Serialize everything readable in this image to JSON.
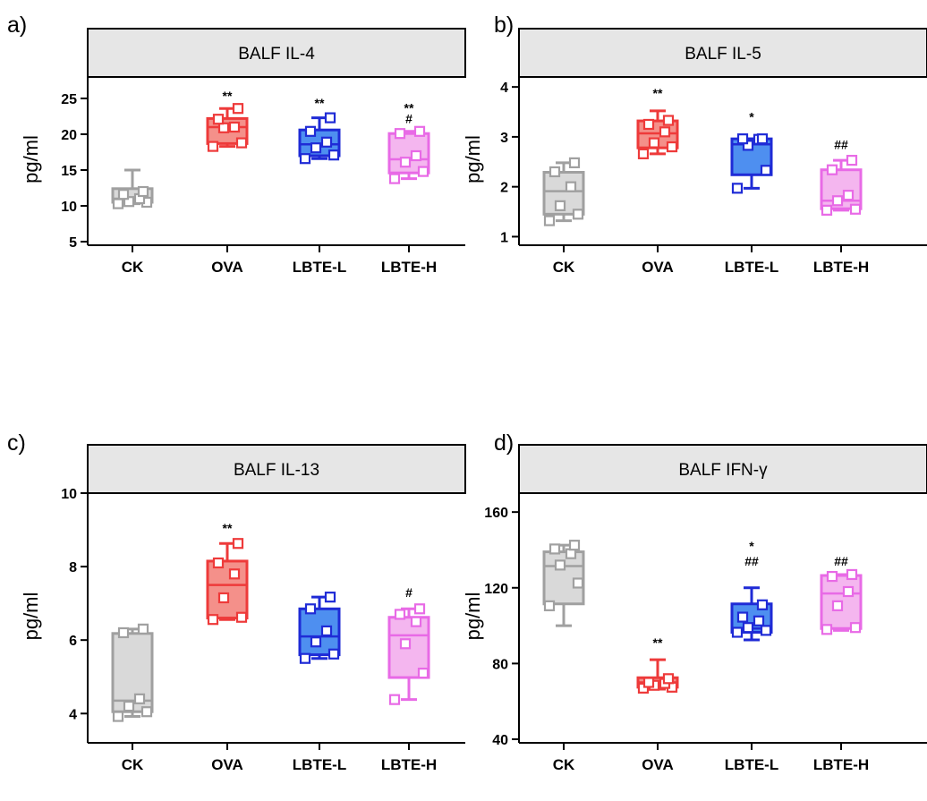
{
  "chart_data": [
    {
      "panel": "a)",
      "type": "box",
      "title": "BALF IL-4",
      "ylabel": "pg/ml",
      "ylim": [
        5,
        28
      ],
      "yticks": [
        5,
        10,
        15,
        20,
        25
      ],
      "categories": [
        "CK",
        "OVA",
        "LBTE-L",
        "LBTE-H"
      ],
      "series": [
        {
          "name": "CK",
          "color": "#a0a0a0",
          "fill": "#d9d9d9",
          "min": 10.3,
          "q1": 10.5,
          "median": 11.0,
          "q3": 12.4,
          "max": 15.0,
          "points": [
            10.3,
            10.5,
            10.6,
            11.0,
            11.6,
            12.0
          ]
        },
        {
          "name": "OVA",
          "color": "#ee3a3a",
          "fill": "#f4908a",
          "min": 18.3,
          "q1": 18.7,
          "median": 21.0,
          "q3": 22.2,
          "max": 23.6,
          "points": [
            18.3,
            18.8,
            20.9,
            21.0,
            22.1,
            23.6
          ]
        },
        {
          "name": "LBTE-L",
          "color": "#1f2bd6",
          "fill": "#4e8ff0",
          "min": 16.6,
          "q1": 17.0,
          "median": 18.6,
          "q3": 20.6,
          "max": 22.3,
          "points": [
            16.6,
            17.1,
            18.1,
            18.9,
            20.4,
            22.3
          ]
        },
        {
          "name": "LBTE-H",
          "color": "#e86ae6",
          "fill": "#f4b6ef",
          "min": 13.8,
          "q1": 14.6,
          "median": 16.5,
          "q3": 20.1,
          "max": 20.4,
          "points": [
            13.8,
            14.8,
            16.1,
            17.0,
            20.1,
            20.4
          ]
        }
      ],
      "annotations": [
        {
          "category": "OVA",
          "text": "**",
          "y": 25.4
        },
        {
          "category": "LBTE-L",
          "text": "**",
          "y": 24.4
        },
        {
          "category": "LBTE-H",
          "text": "**",
          "y": 23.7
        },
        {
          "category": "LBTE-H",
          "text": "#",
          "y": 22.2
        }
      ]
    },
    {
      "panel": "b)",
      "type": "box",
      "title": "BALF IL-5",
      "ylabel": "pg/ml",
      "ylim": [
        0.9,
        4.2
      ],
      "yticks": [
        1,
        2,
        3,
        4
      ],
      "categories": [
        "CK",
        "OVA",
        "LBTE-L",
        "LBTE-H"
      ],
      "series": [
        {
          "name": "CK",
          "color": "#a0a0a0",
          "fill": "#d9d9d9",
          "min": 1.32,
          "q1": 1.45,
          "median": 1.91,
          "q3": 2.29,
          "max": 2.48,
          "points": [
            1.32,
            1.45,
            1.62,
            2.0,
            2.3,
            2.48
          ]
        },
        {
          "name": "OVA",
          "color": "#ee3a3a",
          "fill": "#f4908a",
          "min": 2.66,
          "q1": 2.78,
          "median": 3.07,
          "q3": 3.32,
          "max": 3.52,
          "points": [
            2.66,
            2.8,
            2.88,
            3.1,
            3.25,
            3.33
          ]
        },
        {
          "name": "LBTE-L",
          "color": "#1f2bd6",
          "fill": "#4e8ff0",
          "min": 1.97,
          "q1": 2.24,
          "median": 2.85,
          "q3": 2.96,
          "max": 2.96,
          "points": [
            1.97,
            2.33,
            2.83,
            2.95,
            2.96,
            2.96
          ]
        },
        {
          "name": "LBTE-H",
          "color": "#e86ae6",
          "fill": "#f4b6ef",
          "min": 1.53,
          "q1": 1.56,
          "median": 1.72,
          "q3": 2.34,
          "max": 2.53,
          "points": [
            1.53,
            1.55,
            1.72,
            1.83,
            2.34,
            2.53
          ]
        }
      ],
      "annotations": [
        {
          "category": "OVA",
          "text": "**",
          "y": 3.88
        },
        {
          "category": "LBTE-L",
          "text": "*",
          "y": 3.4
        },
        {
          "category": "LBTE-H",
          "text": "##",
          "y": 2.85
        }
      ]
    },
    {
      "panel": "c)",
      "type": "box",
      "title": "BALF IL-13",
      "ylabel": "pg/ml",
      "ylim": [
        3.3,
        10
      ],
      "yticks": [
        4,
        6,
        8,
        10
      ],
      "categories": [
        "CK",
        "OVA",
        "LBTE-L",
        "LBTE-H"
      ],
      "series": [
        {
          "name": "CK",
          "color": "#a0a0a0",
          "fill": "#d9d9d9",
          "min": 3.92,
          "q1": 4.05,
          "median": 4.35,
          "q3": 6.18,
          "max": 6.3,
          "points": [
            3.92,
            4.05,
            4.2,
            4.4,
            6.2,
            6.3
          ]
        },
        {
          "name": "OVA",
          "color": "#ee3a3a",
          "fill": "#f4908a",
          "min": 6.56,
          "q1": 6.6,
          "median": 7.5,
          "q3": 8.15,
          "max": 8.63,
          "points": [
            6.56,
            6.62,
            7.15,
            7.8,
            8.1,
            8.63
          ]
        },
        {
          "name": "LBTE-L",
          "color": "#1f2bd6",
          "fill": "#4e8ff0",
          "min": 5.5,
          "q1": 5.6,
          "median": 6.1,
          "q3": 6.85,
          "max": 7.17,
          "points": [
            5.5,
            5.62,
            5.95,
            6.25,
            6.85,
            7.17
          ]
        },
        {
          "name": "LBTE-H",
          "color": "#e86ae6",
          "fill": "#f4b6ef",
          "min": 4.38,
          "q1": 4.98,
          "median": 6.13,
          "q3": 6.62,
          "max": 6.85,
          "points": [
            4.38,
            5.1,
            5.9,
            6.5,
            6.7,
            6.85
          ]
        }
      ],
      "annotations": [
        {
          "category": "OVA",
          "text": "**",
          "y": 9.05
        },
        {
          "category": "LBTE-H",
          "text": "#",
          "y": 7.3
        }
      ]
    },
    {
      "panel": "d)",
      "type": "box",
      "title": "BALF IFN-γ",
      "ylabel": "pg/ml",
      "ylim": [
        40,
        170
      ],
      "yticks": [
        40,
        80,
        120,
        160
      ],
      "categories": [
        "CK",
        "OVA",
        "LBTE-L",
        "LBTE-H"
      ],
      "series": [
        {
          "name": "CK",
          "color": "#a0a0a0",
          "fill": "#d9d9d9",
          "min": 100,
          "q1": 111.5,
          "median": 131.5,
          "q3": 139,
          "max": 142.5,
          "points": [
            110.5,
            122.5,
            132,
            138,
            140.5,
            142.5
          ]
        },
        {
          "name": "OVA",
          "color": "#ee3a3a",
          "fill": "#f4908a",
          "min": 66.5,
          "q1": 67.5,
          "median": 70,
          "q3": 72.5,
          "max": 82,
          "points": [
            67,
            67.5,
            68.5,
            69.5,
            70,
            72
          ]
        },
        {
          "name": "LBTE-L",
          "color": "#1f2bd6",
          "fill": "#4e8ff0",
          "min": 92.5,
          "q1": 96.5,
          "median": 98.5,
          "q3": 111.5,
          "max": 120,
          "points": [
            96.5,
            97.5,
            99,
            102.5,
            104.5,
            111
          ]
        },
        {
          "name": "LBTE-H",
          "color": "#e86ae6",
          "fill": "#f4b6ef",
          "min": 97.5,
          "q1": 98.5,
          "median": 117,
          "q3": 126.5,
          "max": 127,
          "points": [
            98,
            99,
            110.5,
            118,
            126,
            127
          ]
        }
      ],
      "annotations": [
        {
          "category": "OVA",
          "text": "**",
          "y": 91
        },
        {
          "category": "LBTE-L",
          "text": "*",
          "y": 142
        },
        {
          "category": "LBTE-L",
          "text": "##",
          "y": 134
        },
        {
          "category": "LBTE-H",
          "text": "##",
          "y": 134
        }
      ]
    }
  ]
}
